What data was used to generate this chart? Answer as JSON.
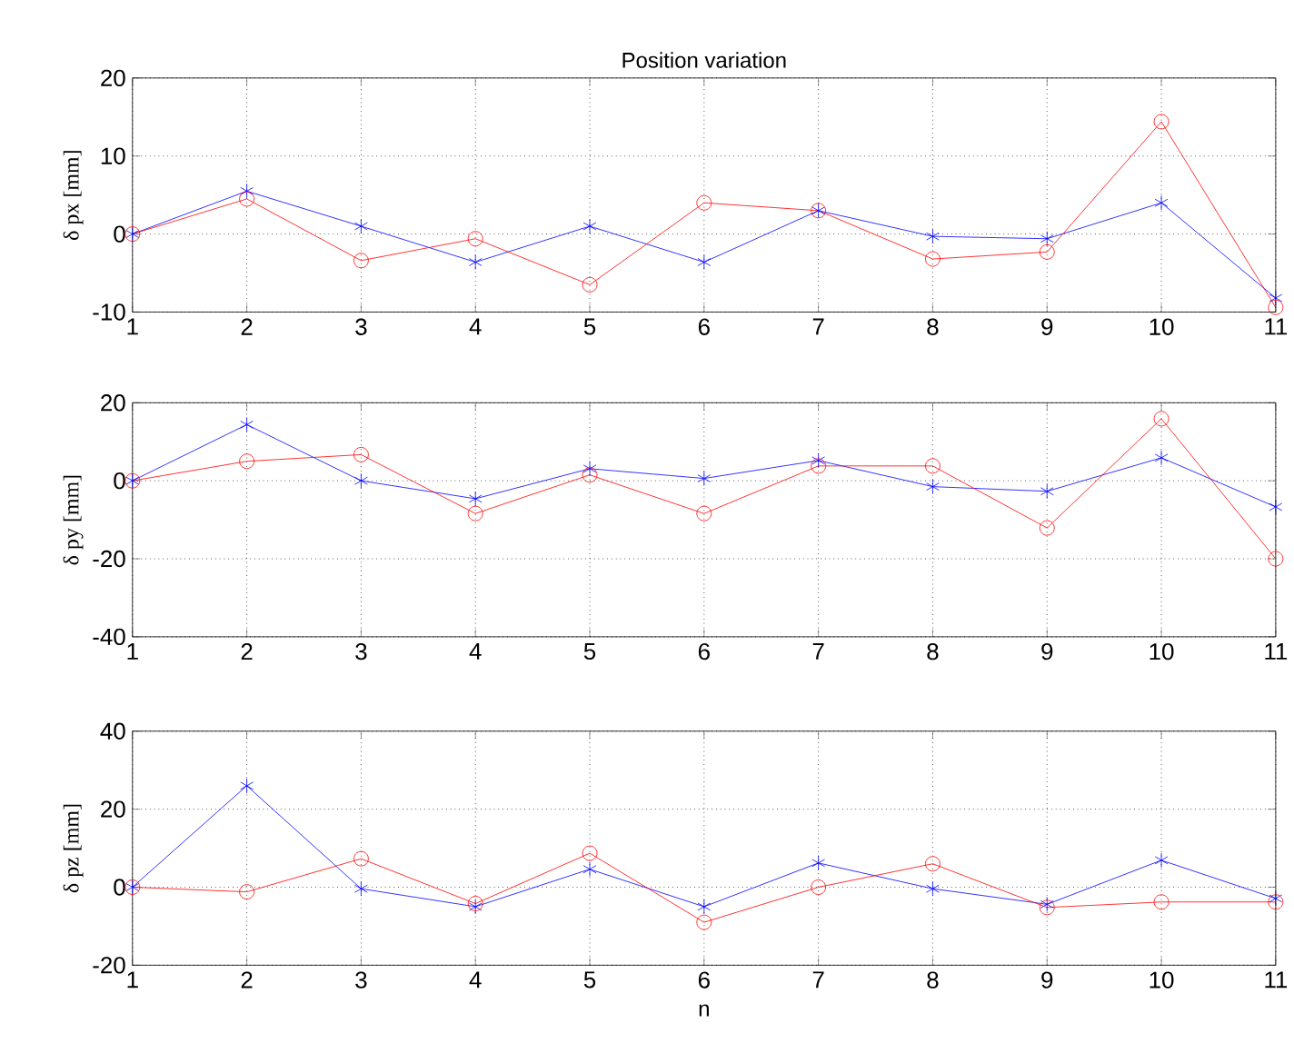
{
  "chart_data": [
    {
      "type": "line",
      "title": "Position variation",
      "ylabel": "δ px [mm]",
      "x": [
        1,
        2,
        3,
        4,
        5,
        6,
        7,
        8,
        9,
        10,
        11
      ],
      "xlim": [
        1,
        11
      ],
      "xticks": [
        1,
        2,
        3,
        4,
        5,
        6,
        7,
        8,
        9,
        10,
        11
      ],
      "ylim": [
        -10,
        20
      ],
      "yticks": [
        -10,
        0,
        10,
        20
      ],
      "grid": true,
      "line_style": "solid",
      "series": [
        {
          "color": "#0000ff",
          "marker": "cross",
          "values": [
            0,
            5.5,
            1,
            -3.6,
            1,
            -3.6,
            3,
            -0.3,
            -0.6,
            4,
            -8.2
          ]
        },
        {
          "color": "#ff0000",
          "marker": "circle",
          "values": [
            0,
            4.5,
            -3.4,
            -0.6,
            -6.5,
            4,
            3,
            -3.2,
            -2.3,
            14.4,
            -9.4
          ]
        }
      ]
    },
    {
      "type": "line",
      "ylabel": "δ py [mm]",
      "x": [
        1,
        2,
        3,
        4,
        5,
        6,
        7,
        8,
        9,
        10,
        11
      ],
      "xlim": [
        1,
        11
      ],
      "xticks": [
        1,
        2,
        3,
        4,
        5,
        6,
        7,
        8,
        9,
        10,
        11
      ],
      "ylim": [
        -40,
        20
      ],
      "yticks": [
        -40,
        -20,
        0,
        20
      ],
      "grid": true,
      "line_style": "solid",
      "series": [
        {
          "color": "#0000ff",
          "marker": "cross",
          "values": [
            0,
            14.4,
            0,
            -4.6,
            3.1,
            0.6,
            5.2,
            -1.5,
            -2.7,
            5.9,
            -6.7
          ]
        },
        {
          "color": "#ff0000",
          "marker": "circle",
          "values": [
            0,
            5,
            6.7,
            -8.4,
            1.5,
            -8.4,
            3.8,
            3.8,
            -12.1,
            15.9,
            -20
          ]
        }
      ]
    },
    {
      "type": "line",
      "xlabel": "n",
      "ylabel": "δ pz [mm]",
      "x": [
        1,
        2,
        3,
        4,
        5,
        6,
        7,
        8,
        9,
        10,
        11
      ],
      "xlim": [
        1,
        11
      ],
      "xticks": [
        1,
        2,
        3,
        4,
        5,
        6,
        7,
        8,
        9,
        10,
        11
      ],
      "ylim": [
        -20,
        40
      ],
      "yticks": [
        -20,
        0,
        20,
        40
      ],
      "grid": true,
      "line_style": "solid",
      "series": [
        {
          "color": "#0000ff",
          "marker": "cross",
          "values": [
            0,
            26,
            -0.4,
            -5,
            4.6,
            -5,
            6.2,
            -0.4,
            -4.4,
            6.9,
            -2.9
          ]
        },
        {
          "color": "#ff0000",
          "marker": "circle",
          "values": [
            0,
            -1.2,
            7.3,
            -4.2,
            8.7,
            -9,
            0,
            6,
            -5.2,
            -3.8,
            -3.8
          ]
        }
      ]
    }
  ]
}
